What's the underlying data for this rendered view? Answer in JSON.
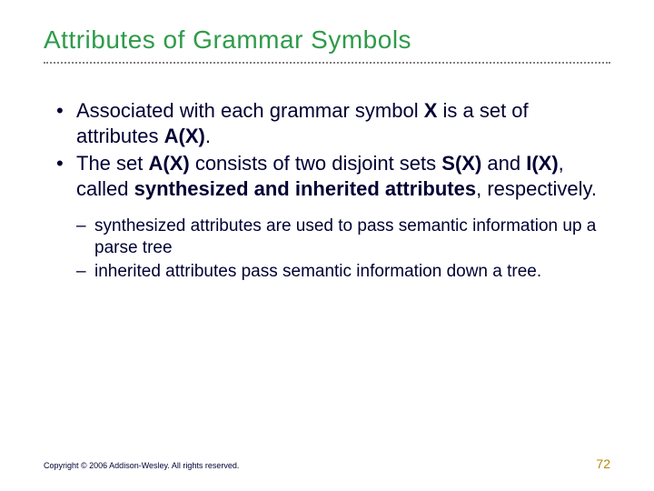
{
  "title": "Attributes of Grammar Symbols",
  "bullets": [
    {
      "segments": [
        {
          "t": "Associated with each grammar symbol ",
          "b": false
        },
        {
          "t": "X",
          "b": true
        },
        {
          "t": " is a set of attributes ",
          "b": false
        },
        {
          "t": "A(X)",
          "b": true
        },
        {
          "t": ".",
          "b": false
        }
      ]
    },
    {
      "segments": [
        {
          "t": "The set ",
          "b": false
        },
        {
          "t": "A(X)",
          "b": true
        },
        {
          "t": " consists of two disjoint sets ",
          "b": false
        },
        {
          "t": "S(X)",
          "b": true
        },
        {
          "t": " and ",
          "b": false
        },
        {
          "t": "I(X)",
          "b": true
        },
        {
          "t": ", called ",
          "b": false
        },
        {
          "t": "synthesized and inherited attributes",
          "b": true
        },
        {
          "t": ", respectively.",
          "b": false
        }
      ]
    }
  ],
  "subbullets": [
    "synthesized attributes are used to pass semantic information up a parse tree",
    "inherited attributes pass semantic information down a tree."
  ],
  "copyright": "Copyright © 2006 Addison-Wesley. All rights reserved.",
  "page": "72",
  "colors": {
    "title": "#2e9b4a",
    "text": "#000033",
    "divider": "#808080",
    "pagenum": "#b8860b",
    "background": "#ffffff"
  },
  "fonts": {
    "title_size": 28,
    "bullet_size": 22,
    "sub_size": 19,
    "copyright_size": 9,
    "pagenum_size": 14
  }
}
